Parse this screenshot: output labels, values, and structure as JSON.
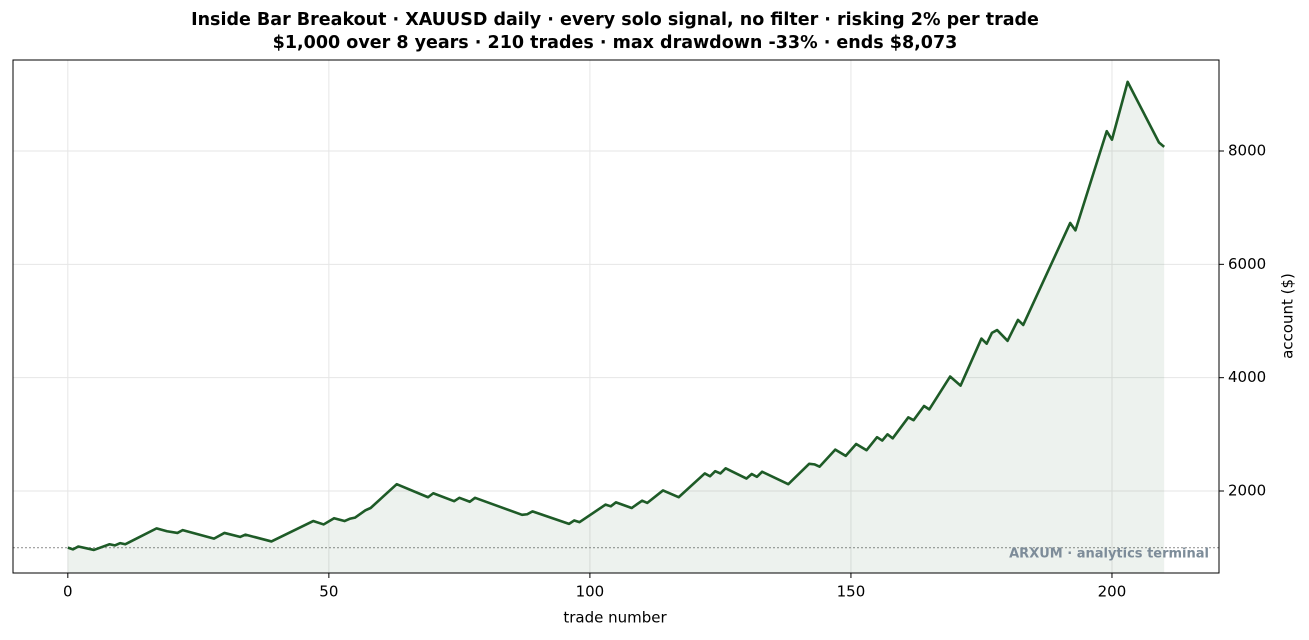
{
  "chart_data": {
    "type": "line",
    "title": "Inside Bar Breakout · XAUUSD daily · every solo signal, no filter · risking 2% per trade",
    "subtitle": "$1,000 over 8 years · 210 trades · max drawdown -33% · ends $8,073",
    "x_label": "trade number",
    "y_label": "account ($)",
    "annotation": "ARXUM · analytics terminal",
    "x": [
      0,
      1,
      2,
      5,
      8,
      9,
      10,
      11,
      17,
      19,
      21,
      22,
      28,
      30,
      33,
      34,
      39,
      47,
      49,
      51,
      53,
      54,
      55,
      57,
      58,
      63,
      69,
      70,
      74,
      75,
      77,
      78,
      87,
      88,
      89,
      96,
      97,
      98,
      103,
      104,
      105,
      108,
      110,
      111,
      114,
      117,
      122,
      123,
      124,
      125,
      126,
      130,
      131,
      132,
      133,
      138,
      142,
      143,
      144,
      147,
      149,
      151,
      153,
      155,
      156,
      157,
      158,
      161,
      162,
      164,
      165,
      169,
      171,
      175,
      176,
      177,
      178,
      180,
      182,
      183,
      192,
      193,
      199,
      200,
      203,
      209,
      210
    ],
    "series": [
      {
        "name": "account",
        "color": "#1e5b27",
        "values": [
          1000,
          970,
          1020,
          960,
          1060,
          1040,
          1080,
          1060,
          1340,
          1290,
          1260,
          1310,
          1160,
          1260,
          1190,
          1230,
          1110,
          1470,
          1410,
          1520,
          1470,
          1510,
          1530,
          1660,
          1700,
          2120,
          1890,
          1960,
          1820,
          1880,
          1810,
          1880,
          1580,
          1590,
          1640,
          1420,
          1480,
          1450,
          1760,
          1730,
          1800,
          1700,
          1830,
          1790,
          2010,
          1890,
          2310,
          2260,
          2350,
          2310,
          2400,
          2220,
          2300,
          2250,
          2340,
          2120,
          2480,
          2470,
          2430,
          2730,
          2620,
          2830,
          2720,
          2950,
          2890,
          3000,
          2930,
          3300,
          3250,
          3500,
          3440,
          4020,
          3860,
          4690,
          4600,
          4790,
          4840,
          4650,
          5020,
          4930,
          6730,
          6600,
          8350,
          8200,
          9220,
          8150,
          8073
        ]
      }
    ],
    "baseline": 1000,
    "xlim": [
      -10.5,
      220.5
    ],
    "xticks": [
      0,
      50,
      100,
      150,
      200
    ],
    "ylim": [
      553,
      9606
    ],
    "yticks": [
      2000,
      4000,
      6000,
      8000
    ],
    "y_axis_side": "right",
    "grid": true
  }
}
